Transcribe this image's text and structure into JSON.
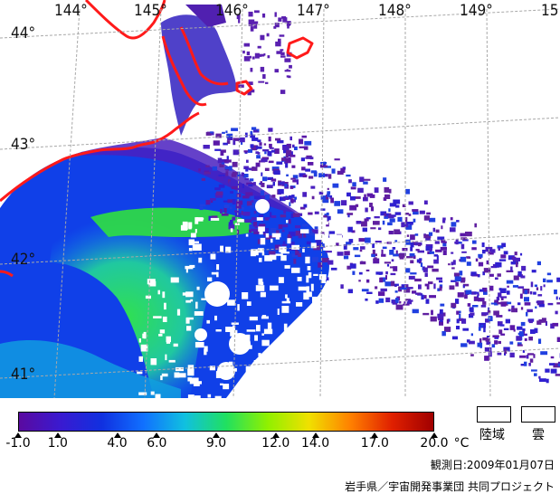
{
  "map": {
    "lon_labels": [
      "144°",
      "145°",
      "146°",
      "147°",
      "148°",
      "149°",
      "15"
    ],
    "lat_labels": [
      "44°",
      "43°",
      "42°",
      "41°"
    ]
  },
  "legend": {
    "unit": "°C",
    "tick_labels": [
      "-1.0",
      "1.0",
      "4.0",
      "6.0",
      "9.0",
      "12.0",
      "14.0",
      "17.0",
      "20.0"
    ],
    "tick_values": [
      -1.0,
      1.0,
      4.0,
      6.0,
      9.0,
      12.0,
      14.0,
      17.0,
      20.0
    ],
    "range": [
      -1.0,
      20.0
    ],
    "land_label": "陸域",
    "cloud_label": "雲",
    "gradient_colors": [
      "#5a0aa0",
      "#3a1ad0",
      "#1030e0",
      "#1070ff",
      "#10c0e0",
      "#20e060",
      "#90f000",
      "#f0e000",
      "#ff8000",
      "#e02000",
      "#a00000"
    ]
  },
  "footer": {
    "date": "観測日:2009年01月07日",
    "credit": "岩手県／宇宙開発事業団 共同プロジェクト"
  },
  "colors": {
    "coast": "#ff1a1a",
    "deep_blue": "#1030d8",
    "purple": "#5018b0",
    "green": "#20e040",
    "grid": "#b0b0b0"
  }
}
